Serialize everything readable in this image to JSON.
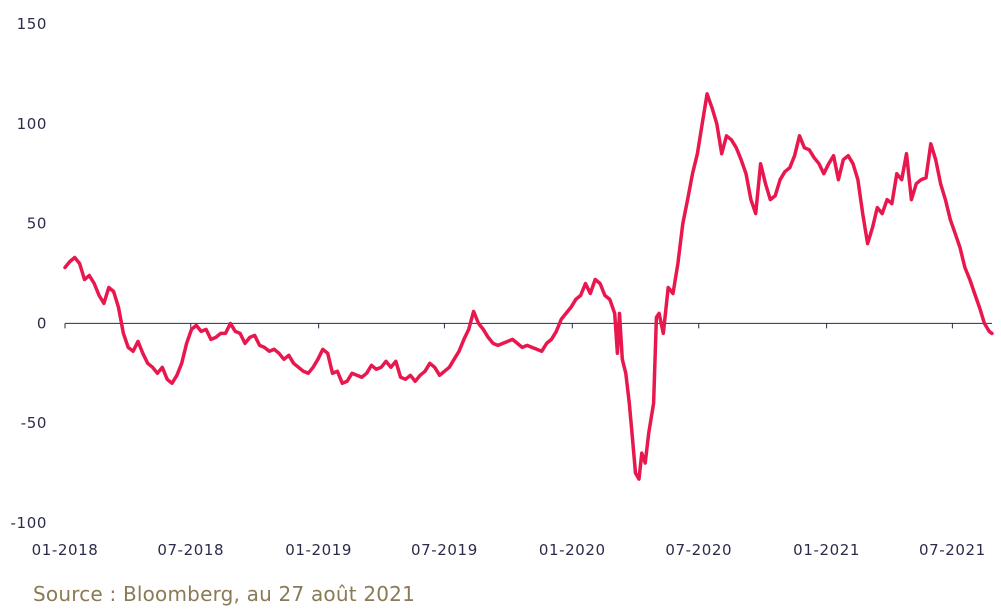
{
  "source": "Source : Bloomberg, au 27 août 2021",
  "chart_data": {
    "type": "line",
    "title": "",
    "xlabel": "",
    "ylabel": "",
    "ylim": [
      -100,
      150
    ],
    "xlim": [
      "2018-01-01",
      "2021-08-27"
    ],
    "yticks": [
      "150",
      "100",
      "50",
      "0",
      "-50",
      "-100"
    ],
    "xticks": [
      {
        "date": "2018-01-01",
        "label": "01-2018"
      },
      {
        "date": "2018-07-01",
        "label": "07-2018"
      },
      {
        "date": "2019-01-01",
        "label": "01-2019"
      },
      {
        "date": "2019-07-01",
        "label": "07-2019"
      },
      {
        "date": "2020-01-01",
        "label": "01-2020"
      },
      {
        "date": "2020-07-01",
        "label": "07-2020"
      },
      {
        "date": "2021-01-01",
        "label": "01-2021"
      },
      {
        "date": "2021-07-01",
        "label": "07-2021"
      }
    ],
    "grid": false,
    "series": [
      {
        "color": "#e8184f",
        "points": [
          [
            "2018-01-01",
            28
          ],
          [
            "2018-01-08",
            31
          ],
          [
            "2018-01-15",
            33
          ],
          [
            "2018-01-22",
            30
          ],
          [
            "2018-01-29",
            22
          ],
          [
            "2018-02-05",
            24
          ],
          [
            "2018-02-12",
            20
          ],
          [
            "2018-02-19",
            14
          ],
          [
            "2018-02-26",
            10
          ],
          [
            "2018-03-05",
            18
          ],
          [
            "2018-03-12",
            16
          ],
          [
            "2018-03-19",
            8
          ],
          [
            "2018-03-26",
            -5
          ],
          [
            "2018-04-02",
            -12
          ],
          [
            "2018-04-09",
            -14
          ],
          [
            "2018-04-16",
            -9
          ],
          [
            "2018-04-23",
            -15
          ],
          [
            "2018-04-30",
            -20
          ],
          [
            "2018-05-07",
            -22
          ],
          [
            "2018-05-14",
            -25
          ],
          [
            "2018-05-21",
            -22
          ],
          [
            "2018-05-28",
            -28
          ],
          [
            "2018-06-04",
            -30
          ],
          [
            "2018-06-11",
            -26
          ],
          [
            "2018-06-18",
            -20
          ],
          [
            "2018-06-25",
            -10
          ],
          [
            "2018-07-02",
            -3
          ],
          [
            "2018-07-09",
            -1
          ],
          [
            "2018-07-16",
            -4
          ],
          [
            "2018-07-23",
            -3
          ],
          [
            "2018-07-30",
            -8
          ],
          [
            "2018-08-06",
            -7
          ],
          [
            "2018-08-13",
            -5
          ],
          [
            "2018-08-20",
            -5
          ],
          [
            "2018-08-27",
            0
          ],
          [
            "2018-09-03",
            -4
          ],
          [
            "2018-09-10",
            -5
          ],
          [
            "2018-09-17",
            -10
          ],
          [
            "2018-09-24",
            -7
          ],
          [
            "2018-10-01",
            -6
          ],
          [
            "2018-10-08",
            -11
          ],
          [
            "2018-10-15",
            -12
          ],
          [
            "2018-10-22",
            -14
          ],
          [
            "2018-10-29",
            -13
          ],
          [
            "2018-11-05",
            -15
          ],
          [
            "2018-11-12",
            -18
          ],
          [
            "2018-11-19",
            -16
          ],
          [
            "2018-11-26",
            -20
          ],
          [
            "2018-12-03",
            -22
          ],
          [
            "2018-12-10",
            -24
          ],
          [
            "2018-12-17",
            -25
          ],
          [
            "2018-12-24",
            -22
          ],
          [
            "2018-12-31",
            -18
          ],
          [
            "2019-01-07",
            -13
          ],
          [
            "2019-01-14",
            -15
          ],
          [
            "2019-01-21",
            -25
          ],
          [
            "2019-01-28",
            -24
          ],
          [
            "2019-02-04",
            -30
          ],
          [
            "2019-02-11",
            -29
          ],
          [
            "2019-02-18",
            -25
          ],
          [
            "2019-02-25",
            -26
          ],
          [
            "2019-03-04",
            -27
          ],
          [
            "2019-03-11",
            -25
          ],
          [
            "2019-03-18",
            -21
          ],
          [
            "2019-03-25",
            -23
          ],
          [
            "2019-04-01",
            -22
          ],
          [
            "2019-04-08",
            -19
          ],
          [
            "2019-04-15",
            -22
          ],
          [
            "2019-04-22",
            -19
          ],
          [
            "2019-04-29",
            -27
          ],
          [
            "2019-05-06",
            -28
          ],
          [
            "2019-05-13",
            -26
          ],
          [
            "2019-05-20",
            -29
          ],
          [
            "2019-05-27",
            -26
          ],
          [
            "2019-06-03",
            -24
          ],
          [
            "2019-06-10",
            -20
          ],
          [
            "2019-06-17",
            -22
          ],
          [
            "2019-06-24",
            -26
          ],
          [
            "2019-07-01",
            -24
          ],
          [
            "2019-07-08",
            -22
          ],
          [
            "2019-07-15",
            -18
          ],
          [
            "2019-07-22",
            -14
          ],
          [
            "2019-07-29",
            -8
          ],
          [
            "2019-08-05",
            -3
          ],
          [
            "2019-08-12",
            6
          ],
          [
            "2019-08-19",
            0
          ],
          [
            "2019-08-26",
            -3
          ],
          [
            "2019-09-02",
            -7
          ],
          [
            "2019-09-09",
            -10
          ],
          [
            "2019-09-16",
            -11
          ],
          [
            "2019-09-23",
            -10
          ],
          [
            "2019-09-30",
            -9
          ],
          [
            "2019-10-07",
            -8
          ],
          [
            "2019-10-14",
            -10
          ],
          [
            "2019-10-21",
            -12
          ],
          [
            "2019-10-28",
            -11
          ],
          [
            "2019-11-04",
            -12
          ],
          [
            "2019-11-11",
            -13
          ],
          [
            "2019-11-18",
            -14
          ],
          [
            "2019-11-25",
            -10
          ],
          [
            "2019-12-02",
            -8
          ],
          [
            "2019-12-09",
            -4
          ],
          [
            "2019-12-16",
            2
          ],
          [
            "2019-12-23",
            5
          ],
          [
            "2019-12-30",
            8
          ],
          [
            "2020-01-06",
            12
          ],
          [
            "2020-01-13",
            14
          ],
          [
            "2020-01-20",
            20
          ],
          [
            "2020-01-27",
            15
          ],
          [
            "2020-02-03",
            22
          ],
          [
            "2020-02-10",
            20
          ],
          [
            "2020-02-17",
            14
          ],
          [
            "2020-02-24",
            12
          ],
          [
            "2020-03-02",
            5
          ],
          [
            "2020-03-06",
            -15
          ],
          [
            "2020-03-09",
            5
          ],
          [
            "2020-03-13",
            -18
          ],
          [
            "2020-03-18",
            -25
          ],
          [
            "2020-03-23",
            -40
          ],
          [
            "2020-03-27",
            -55
          ],
          [
            "2020-04-01",
            -75
          ],
          [
            "2020-04-06",
            -78
          ],
          [
            "2020-04-10",
            -65
          ],
          [
            "2020-04-15",
            -70
          ],
          [
            "2020-04-20",
            -55
          ],
          [
            "2020-04-27",
            -40
          ],
          [
            "2020-05-01",
            3
          ],
          [
            "2020-05-05",
            5
          ],
          [
            "2020-05-11",
            -5
          ],
          [
            "2020-05-18",
            18
          ],
          [
            "2020-05-25",
            15
          ],
          [
            "2020-06-01",
            30
          ],
          [
            "2020-06-08",
            50
          ],
          [
            "2020-06-15",
            62
          ],
          [
            "2020-06-22",
            75
          ],
          [
            "2020-06-29",
            85
          ],
          [
            "2020-07-06",
            100
          ],
          [
            "2020-07-13",
            115
          ],
          [
            "2020-07-20",
            108
          ],
          [
            "2020-07-27",
            100
          ],
          [
            "2020-08-03",
            85
          ],
          [
            "2020-08-10",
            94
          ],
          [
            "2020-08-17",
            92
          ],
          [
            "2020-08-24",
            88
          ],
          [
            "2020-08-31",
            82
          ],
          [
            "2020-09-07",
            75
          ],
          [
            "2020-09-14",
            62
          ],
          [
            "2020-09-21",
            55
          ],
          [
            "2020-09-28",
            80
          ],
          [
            "2020-10-05",
            70
          ],
          [
            "2020-10-12",
            62
          ],
          [
            "2020-10-19",
            64
          ],
          [
            "2020-10-26",
            72
          ],
          [
            "2020-11-02",
            76
          ],
          [
            "2020-11-09",
            78
          ],
          [
            "2020-11-16",
            84
          ],
          [
            "2020-11-23",
            94
          ],
          [
            "2020-11-30",
            88
          ],
          [
            "2020-12-07",
            87
          ],
          [
            "2020-12-14",
            83
          ],
          [
            "2020-12-21",
            80
          ],
          [
            "2020-12-28",
            75
          ],
          [
            "2021-01-04",
            80
          ],
          [
            "2021-01-11",
            84
          ],
          [
            "2021-01-18",
            72
          ],
          [
            "2021-01-25",
            82
          ],
          [
            "2021-02-01",
            84
          ],
          [
            "2021-02-08",
            80
          ],
          [
            "2021-02-15",
            72
          ],
          [
            "2021-02-22",
            55
          ],
          [
            "2021-03-01",
            40
          ],
          [
            "2021-03-08",
            48
          ],
          [
            "2021-03-15",
            58
          ],
          [
            "2021-03-22",
            55
          ],
          [
            "2021-03-29",
            62
          ],
          [
            "2021-04-05",
            60
          ],
          [
            "2021-04-12",
            75
          ],
          [
            "2021-04-19",
            72
          ],
          [
            "2021-04-26",
            85
          ],
          [
            "2021-05-03",
            62
          ],
          [
            "2021-05-10",
            70
          ],
          [
            "2021-05-17",
            72
          ],
          [
            "2021-05-24",
            73
          ],
          [
            "2021-05-31",
            90
          ],
          [
            "2021-06-07",
            82
          ],
          [
            "2021-06-14",
            70
          ],
          [
            "2021-06-21",
            62
          ],
          [
            "2021-06-28",
            52
          ],
          [
            "2021-07-05",
            45
          ],
          [
            "2021-07-12",
            38
          ],
          [
            "2021-07-19",
            28
          ],
          [
            "2021-07-26",
            22
          ],
          [
            "2021-08-02",
            15
          ],
          [
            "2021-08-09",
            8
          ],
          [
            "2021-08-16",
            0
          ],
          [
            "2021-08-23",
            -4
          ],
          [
            "2021-08-27",
            -5
          ]
        ]
      }
    ]
  }
}
